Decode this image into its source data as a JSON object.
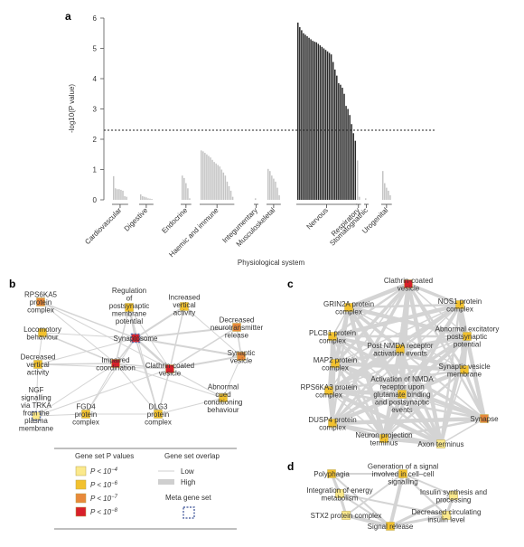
{
  "panel_letters": {
    "a": "a",
    "b": "b",
    "c": "c",
    "d": "d"
  },
  "chart_data": [
    {
      "type": "bar",
      "panel": "a",
      "title": "",
      "xlabel": "Physiological system",
      "ylabel": "-log10(P value)",
      "ylim": [
        0,
        6
      ],
      "yticks": [
        "0",
        "1",
        "2",
        "3",
        "4",
        "5",
        "6"
      ],
      "threshold_y": 2.3,
      "groups": [
        {
          "name": "Cardiovascular",
          "values": [
            0.78,
            0.38,
            0.35,
            0.35,
            0.33,
            0.3,
            0.12,
            0.1
          ],
          "dark": false
        },
        {
          "name": "Digestive",
          "values": [
            0.18,
            0.12,
            0.1,
            0.08,
            0.05,
            0.04,
            0.03
          ],
          "dark": false
        },
        {
          "name": "Endocrine",
          "values": [
            0.8,
            0.72,
            0.55,
            0.38,
            0.05
          ],
          "dark": false
        },
        {
          "name": "Haemic and immune",
          "values": [
            1.63,
            1.6,
            1.55,
            1.5,
            1.45,
            1.4,
            1.32,
            1.25,
            1.2,
            1.15,
            1.1,
            1.0,
            0.9,
            0.8,
            0.6,
            0.45,
            0.3,
            0.1
          ],
          "dark": false
        },
        {
          "name": "Integumentary",
          "values": [
            0.05
          ],
          "dark": false
        },
        {
          "name": "Musculoskeletal",
          "values": [
            1.02,
            0.95,
            0.8,
            0.7,
            0.6,
            0.4,
            0.15
          ],
          "dark": false
        },
        {
          "name": "Nervous",
          "values": [
            5.85,
            5.7,
            5.6,
            5.5,
            5.45,
            5.4,
            5.35,
            5.3,
            5.25,
            5.22,
            5.2,
            5.15,
            5.1,
            5.05,
            5.0,
            4.95,
            4.9,
            4.85,
            4.8,
            4.55,
            4.3,
            4.1,
            3.85,
            3.8,
            3.7,
            3.5,
            3.1,
            3.0,
            2.8,
            2.5,
            2.2,
            1.95
          ],
          "dark": true
        },
        {
          "name": "Respiratory",
          "values": [
            1.3,
            0.1
          ],
          "dark": false
        },
        {
          "name": "Stomatognathic",
          "values": [
            0.05
          ],
          "dark": false
        },
        {
          "name": "Urogenital",
          "values": [
            0.95,
            0.55,
            0.4,
            0.3,
            0.15
          ],
          "dark": false
        }
      ]
    }
  ],
  "networks": {
    "b": {
      "nodes": [
        {
          "id": "rps6ka5",
          "label": [
            "RPS6KA5",
            "protein",
            "complex"
          ],
          "level": 3,
          "square": true
        },
        {
          "id": "regulation",
          "label": [
            "Regulation",
            "of",
            "postsynaptic",
            "membrane",
            "potential"
          ],
          "level": 2,
          "square": true
        },
        {
          "id": "increased",
          "label": [
            "Increased",
            "vertical",
            "activity"
          ],
          "level": 2,
          "square": true
        },
        {
          "id": "synaptosome",
          "label": [
            "Synaptosome"
          ],
          "level": 4,
          "square": true,
          "meta": true
        },
        {
          "id": "locomotory",
          "label": [
            "Locomotory",
            "behaviour"
          ],
          "level": 2,
          "square": true
        },
        {
          "id": "decneuro",
          "label": [
            "Decreased",
            "neurotransmitter",
            "release"
          ],
          "level": 3,
          "square": true
        },
        {
          "id": "decvert",
          "label": [
            "Decreased",
            "vertical",
            "activity"
          ],
          "level": 2,
          "square": true
        },
        {
          "id": "impaired",
          "label": [
            "Impaired",
            "coordination"
          ],
          "level": 4,
          "square": true
        },
        {
          "id": "synvesb",
          "label": [
            "Synaptic",
            "vesicle"
          ],
          "level": 3,
          "square": true
        },
        {
          "id": "clathb",
          "label": [
            "Clathrin-coated",
            "vesicle"
          ],
          "level": 4,
          "square": true
        },
        {
          "id": "ngf",
          "label": [
            "NGF",
            "signalling",
            "via TRKA",
            "from the",
            "plasma",
            "membrane"
          ],
          "level": 1,
          "square": true,
          "meta": true
        },
        {
          "id": "fgd4",
          "label": [
            "FGD4",
            "protein",
            "complex"
          ],
          "level": 2,
          "square": true
        },
        {
          "id": "dlg3",
          "label": [
            "DLG3",
            "protein",
            "complex"
          ],
          "level": 2,
          "square": true
        },
        {
          "id": "abnormal",
          "label": [
            "Abnormal",
            "cued",
            "conditioning",
            "behaviour"
          ],
          "level": 2,
          "square": true
        }
      ]
    },
    "c": {
      "nodes": [
        {
          "id": "clathc",
          "label": [
            "Clathrin-coated",
            "vesicle"
          ],
          "level": 4
        },
        {
          "id": "grin2a",
          "label": [
            "GRIN2A protein",
            "complex"
          ],
          "level": 2
        },
        {
          "id": "nos1",
          "label": [
            "NOS1 protein",
            "complex"
          ],
          "level": 2
        },
        {
          "id": "plcb1",
          "label": [
            "PLCB1 protein",
            "complex"
          ],
          "level": 2
        },
        {
          "id": "abnexc",
          "label": [
            "Abnormal excitatory",
            "postsynaptic",
            "potential"
          ],
          "level": 2
        },
        {
          "id": "postnmda",
          "label": [
            "Post NMDA receptor",
            "activation events"
          ],
          "level": 2
        },
        {
          "id": "map2",
          "label": [
            "MAP2 protein",
            "complex"
          ],
          "level": 2
        },
        {
          "id": "synvesm",
          "label": [
            "Synaptic vesicle",
            "membrane"
          ],
          "level": 2
        },
        {
          "id": "rps6ka3",
          "label": [
            "RPS6KA3 protein",
            "complex"
          ],
          "level": 2
        },
        {
          "id": "actnmda",
          "label": [
            "Activation of NMDA",
            "receptor upon",
            "glutamate binding",
            "and postsynaptic",
            "events"
          ],
          "level": 2
        },
        {
          "id": "dusp4",
          "label": [
            "DUSP4 protein",
            "complex"
          ],
          "level": 2
        },
        {
          "id": "synapse",
          "label": [
            "Synapse"
          ],
          "level": 3
        },
        {
          "id": "neuronproj",
          "label": [
            "Neuron projection",
            "terminus"
          ],
          "level": 2
        },
        {
          "id": "axon",
          "label": [
            "Axon terminus"
          ],
          "level": 1
        }
      ]
    },
    "d": {
      "nodes": [
        {
          "id": "polyphagia",
          "label": [
            "Polyphagia"
          ],
          "level": 2
        },
        {
          "id": "generation",
          "label": [
            "Generation of a signal",
            "involved in cell–cell",
            "signalling"
          ],
          "level": 2
        },
        {
          "id": "integration",
          "label": [
            "Integration of energy",
            "metabolism"
          ],
          "level": 1
        },
        {
          "id": "insulin",
          "label": [
            "Insulin synthesis and",
            "processing"
          ],
          "level": 1
        },
        {
          "id": "stx2",
          "label": [
            "STX2 protein complex"
          ],
          "level": 1
        },
        {
          "id": "decins",
          "label": [
            "Decreased circulating",
            "insulin level"
          ],
          "level": 1
        },
        {
          "id": "signal",
          "label": [
            "Signal release"
          ],
          "level": 2
        }
      ]
    }
  },
  "legend": {
    "pvalue_title": "Gene set P values",
    "overlap_title": "Gene set overlap",
    "low": "Low",
    "high": "High",
    "meta_title": "Meta gene set",
    "levels": [
      {
        "text": "P < 10",
        "exp": "−4",
        "color": "#fbe98c"
      },
      {
        "text": "P < 10",
        "exp": "−6",
        "color": "#f2c12e"
      },
      {
        "text": "P < 10",
        "exp": "−7",
        "color": "#e8893a"
      },
      {
        "text": "P < 10",
        "exp": "−8",
        "color": "#d8202a"
      }
    ]
  },
  "colors": {
    "bar_light": "#c4c4c4",
    "bar_dark": "#2a2a2a",
    "edge": "#d4d4d4",
    "meta_border": "#5b6ea8"
  }
}
